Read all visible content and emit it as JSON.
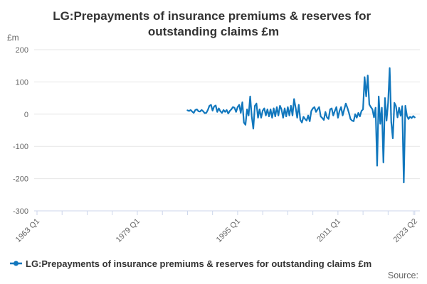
{
  "title": {
    "text": "LG:Prepayments of insurance premiums & reserves for outstanding claims £m",
    "lines": [
      "LG:Prepayments of insurance premiums & reserves for",
      "outstanding claims £m"
    ]
  },
  "legend": {
    "label": "LG:Prepayments of insurance premiums & reserves for outstanding claims £m"
  },
  "footer": {
    "source_label": "Source:"
  },
  "colors": {
    "series": "#1177bd",
    "gridline": "#e6e6e6",
    "axis": "#ccd6eb",
    "label": "#666666",
    "title": "#333333"
  },
  "chart_data": {
    "type": "line",
    "title": "LG:Prepayments of insurance premiums & reserves for outstanding claims £m",
    "ylabel": "£m",
    "ylim": [
      -300,
      200
    ],
    "yticks": [
      200,
      100,
      0,
      -100,
      -200,
      -300
    ],
    "grid": true,
    "legend_position": "bottom-left",
    "frequency": "quarterly",
    "axis_start": "1963 Q1",
    "axis_end": "2023 Q2",
    "x_tick_labels": [
      "1963 Q1",
      "1979 Q1",
      "1995 Q1",
      "2011 Q1",
      "2023 Q2"
    ],
    "x_tick_positions_quarters": [
      0,
      64,
      128,
      192,
      241
    ],
    "minor_tick_interval_quarters": 16,
    "series": [
      {
        "name": "LG:Prepayments of insurance premiums & reserves for outstanding claims £m",
        "color": "#1177bd",
        "start_period": "1987 Q1",
        "end_period": "2023 Q2",
        "start_offset_quarters": 96,
        "values": [
          12,
          10,
          13,
          8,
          4,
          13,
          15,
          9,
          8,
          13,
          9,
          3,
          4,
          13,
          26,
          29,
          11,
          24,
          27,
          7,
          18,
          9,
          4,
          13,
          7,
          13,
          2,
          10,
          15,
          22,
          20,
          7,
          22,
          29,
          4,
          37,
          -26,
          -33,
          15,
          -4,
          55,
          -7,
          -45,
          26,
          33,
          -11,
          15,
          -11,
          11,
          18,
          -4,
          15,
          -7,
          15,
          -11,
          18,
          -7,
          22,
          -4,
          26,
          15,
          -11,
          18,
          -7,
          22,
          -4,
          26,
          -4,
          47,
          20,
          -11,
          29,
          -18,
          -26,
          -8,
          -15,
          -20,
          -4,
          -22,
          10,
          18,
          22,
          7,
          15,
          22,
          -7,
          -12,
          -18,
          7,
          -10,
          -15,
          15,
          18,
          -4,
          10,
          22,
          -11,
          10,
          22,
          -4,
          15,
          33,
          20,
          4,
          -15,
          -20,
          -22,
          0,
          -11,
          4,
          -7,
          10,
          15,
          115,
          55,
          120,
          30,
          22,
          15,
          -10,
          20,
          -160,
          55,
          -30,
          20,
          -150,
          50,
          -20,
          35,
          143,
          -25,
          -75,
          35,
          25,
          -10,
          20,
          -5,
          25,
          -212,
          26,
          -5,
          -15,
          -8,
          -12,
          -6,
          -10
        ]
      }
    ]
  }
}
